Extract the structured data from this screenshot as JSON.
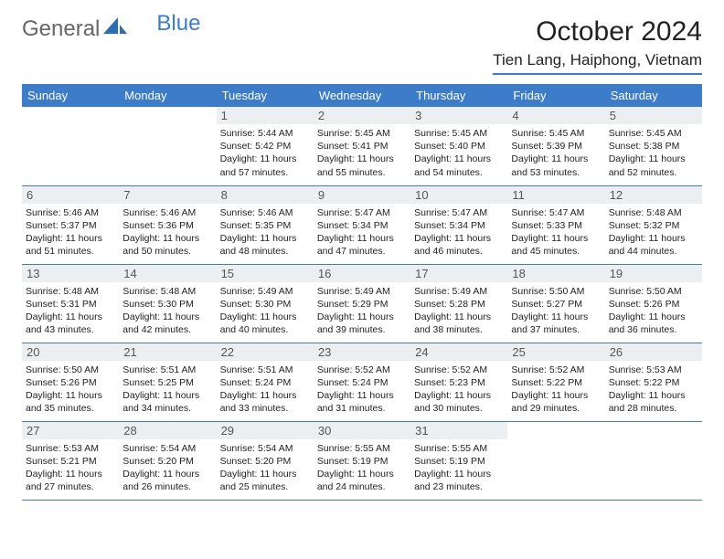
{
  "brand": {
    "part1": "General",
    "part2": "Blue"
  },
  "title": "October 2024",
  "location": "Tien Lang, Haiphong, Vietnam",
  "colors": {
    "accent": "#3d7cc9",
    "daynum_bg": "#eceff1",
    "text": "#222222",
    "logo_gray": "#666666"
  },
  "dayNames": [
    "Sunday",
    "Monday",
    "Tuesday",
    "Wednesday",
    "Thursday",
    "Friday",
    "Saturday"
  ],
  "weeks": [
    [
      null,
      null,
      {
        "n": "1",
        "sr": "5:44 AM",
        "ss": "5:42 PM",
        "dl": "11 hours and 57 minutes."
      },
      {
        "n": "2",
        "sr": "5:45 AM",
        "ss": "5:41 PM",
        "dl": "11 hours and 55 minutes."
      },
      {
        "n": "3",
        "sr": "5:45 AM",
        "ss": "5:40 PM",
        "dl": "11 hours and 54 minutes."
      },
      {
        "n": "4",
        "sr": "5:45 AM",
        "ss": "5:39 PM",
        "dl": "11 hours and 53 minutes."
      },
      {
        "n": "5",
        "sr": "5:45 AM",
        "ss": "5:38 PM",
        "dl": "11 hours and 52 minutes."
      }
    ],
    [
      {
        "n": "6",
        "sr": "5:46 AM",
        "ss": "5:37 PM",
        "dl": "11 hours and 51 minutes."
      },
      {
        "n": "7",
        "sr": "5:46 AM",
        "ss": "5:36 PM",
        "dl": "11 hours and 50 minutes."
      },
      {
        "n": "8",
        "sr": "5:46 AM",
        "ss": "5:35 PM",
        "dl": "11 hours and 48 minutes."
      },
      {
        "n": "9",
        "sr": "5:47 AM",
        "ss": "5:34 PM",
        "dl": "11 hours and 47 minutes."
      },
      {
        "n": "10",
        "sr": "5:47 AM",
        "ss": "5:34 PM",
        "dl": "11 hours and 46 minutes."
      },
      {
        "n": "11",
        "sr": "5:47 AM",
        "ss": "5:33 PM",
        "dl": "11 hours and 45 minutes."
      },
      {
        "n": "12",
        "sr": "5:48 AM",
        "ss": "5:32 PM",
        "dl": "11 hours and 44 minutes."
      }
    ],
    [
      {
        "n": "13",
        "sr": "5:48 AM",
        "ss": "5:31 PM",
        "dl": "11 hours and 43 minutes."
      },
      {
        "n": "14",
        "sr": "5:48 AM",
        "ss": "5:30 PM",
        "dl": "11 hours and 42 minutes."
      },
      {
        "n": "15",
        "sr": "5:49 AM",
        "ss": "5:30 PM",
        "dl": "11 hours and 40 minutes."
      },
      {
        "n": "16",
        "sr": "5:49 AM",
        "ss": "5:29 PM",
        "dl": "11 hours and 39 minutes."
      },
      {
        "n": "17",
        "sr": "5:49 AM",
        "ss": "5:28 PM",
        "dl": "11 hours and 38 minutes."
      },
      {
        "n": "18",
        "sr": "5:50 AM",
        "ss": "5:27 PM",
        "dl": "11 hours and 37 minutes."
      },
      {
        "n": "19",
        "sr": "5:50 AM",
        "ss": "5:26 PM",
        "dl": "11 hours and 36 minutes."
      }
    ],
    [
      {
        "n": "20",
        "sr": "5:50 AM",
        "ss": "5:26 PM",
        "dl": "11 hours and 35 minutes."
      },
      {
        "n": "21",
        "sr": "5:51 AM",
        "ss": "5:25 PM",
        "dl": "11 hours and 34 minutes."
      },
      {
        "n": "22",
        "sr": "5:51 AM",
        "ss": "5:24 PM",
        "dl": "11 hours and 33 minutes."
      },
      {
        "n": "23",
        "sr": "5:52 AM",
        "ss": "5:24 PM",
        "dl": "11 hours and 31 minutes."
      },
      {
        "n": "24",
        "sr": "5:52 AM",
        "ss": "5:23 PM",
        "dl": "11 hours and 30 minutes."
      },
      {
        "n": "25",
        "sr": "5:52 AM",
        "ss": "5:22 PM",
        "dl": "11 hours and 29 minutes."
      },
      {
        "n": "26",
        "sr": "5:53 AM",
        "ss": "5:22 PM",
        "dl": "11 hours and 28 minutes."
      }
    ],
    [
      {
        "n": "27",
        "sr": "5:53 AM",
        "ss": "5:21 PM",
        "dl": "11 hours and 27 minutes."
      },
      {
        "n": "28",
        "sr": "5:54 AM",
        "ss": "5:20 PM",
        "dl": "11 hours and 26 minutes."
      },
      {
        "n": "29",
        "sr": "5:54 AM",
        "ss": "5:20 PM",
        "dl": "11 hours and 25 minutes."
      },
      {
        "n": "30",
        "sr": "5:55 AM",
        "ss": "5:19 PM",
        "dl": "11 hours and 24 minutes."
      },
      {
        "n": "31",
        "sr": "5:55 AM",
        "ss": "5:19 PM",
        "dl": "11 hours and 23 minutes."
      },
      null,
      null
    ]
  ],
  "labels": {
    "sunrise": "Sunrise:",
    "sunset": "Sunset:",
    "daylight": "Daylight:"
  }
}
